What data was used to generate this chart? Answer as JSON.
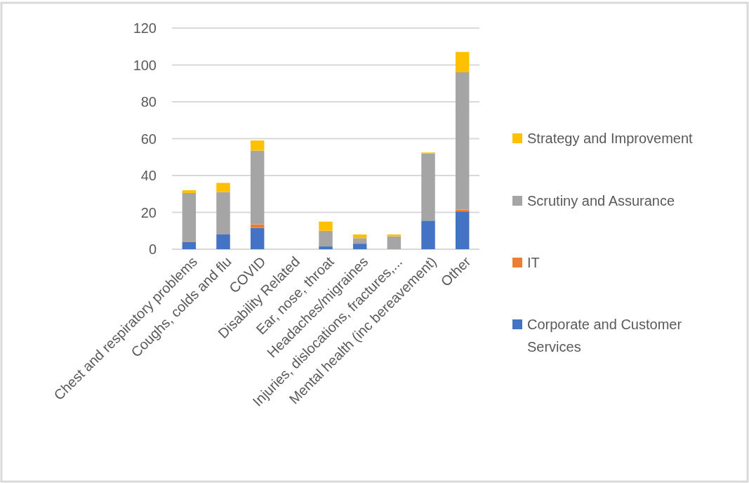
{
  "chart_data": {
    "type": "bar",
    "stacked": true,
    "categories": [
      "Chest and respiratory problems",
      "Coughs, colds and flu",
      "COVID",
      "Disability Related",
      "Ear, nose, throat",
      "Headaches/migraines",
      "Injuries, dislocations, fractures,...",
      "Mental health (inc bereavement)",
      "Other"
    ],
    "series": [
      {
        "name": "Corporate and Customer Services",
        "color": "#4472c4",
        "values": [
          4,
          8,
          11.5,
          0,
          1.5,
          3,
          0,
          15.5,
          20.5
        ]
      },
      {
        "name": "IT",
        "color": "#ed7d31",
        "values": [
          0.5,
          0,
          2,
          0,
          0,
          0,
          0,
          0,
          1
        ]
      },
      {
        "name": "Scrutiny and Assurance",
        "color": "#a5a5a5",
        "values": [
          26,
          23,
          40,
          0,
          8.5,
          3,
          7,
          36.5,
          74.5
        ]
      },
      {
        "name": "Strategy and Improvement",
        "color": "#ffc000",
        "values": [
          1.5,
          5,
          5.5,
          0,
          5,
          2,
          1,
          0.5,
          11
        ]
      }
    ],
    "ylim": [
      0,
      120
    ],
    "yticks": [
      0,
      20,
      40,
      60,
      80,
      100,
      120
    ],
    "grid": "y",
    "legend": "right"
  }
}
